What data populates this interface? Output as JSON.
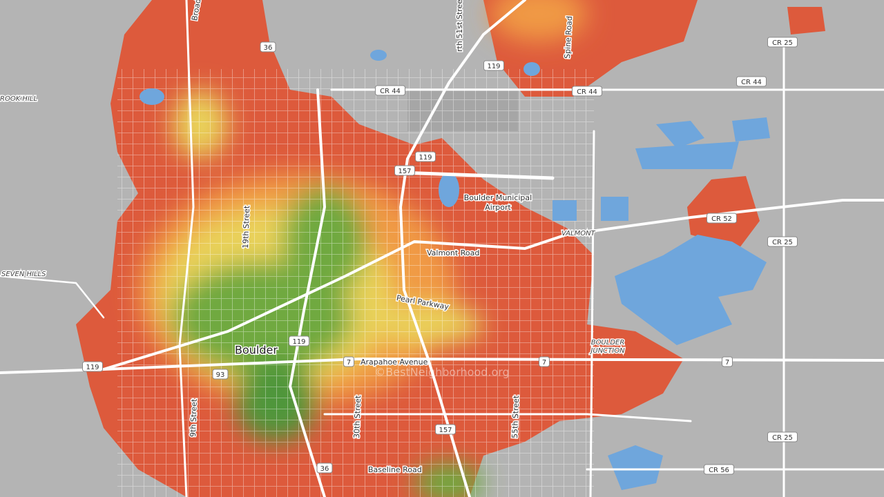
{
  "labels": {
    "broadway": "Broadway",
    "north_51st": "rth 51st Street",
    "spine": "Spine Road",
    "rook_hill": "ROOK HILL",
    "seven_hills": "SEVEN HILLS",
    "airport": [
      "Boulder Municipal",
      "Airport"
    ],
    "nineteenth": "19th Street",
    "valmont_road": "Valmont Road",
    "valmont": "VALMONT",
    "pearl": "Pearl Parkway",
    "boulder": "Boulder",
    "boulder_junction": [
      "BOULDER",
      "JUNCTION"
    ],
    "arapahoe": "Arapahoe Avenue",
    "ninth": "9th Street",
    "thirtieth": "30th Street",
    "fiftyfifth": "55th Street",
    "baseline": "Baseline Road",
    "watermark": "©BestNeighborhood.org"
  },
  "shields": {
    "cr25_a": "CR 25",
    "cr44_a": "CR 44",
    "cr44_b": "CR 44",
    "cr44_c": "CR 44",
    "cr52": "CR 52",
    "cr25_b": "CR 25",
    "cr25_c": "CR 25",
    "cr56": "CR 56",
    "us36_a": "36",
    "us36_b": "36",
    "sh119_a": "119",
    "sh119_b": "119",
    "sh119_c": "119",
    "sh119_d": "119",
    "sh157_a": "157",
    "sh157_b": "157",
    "sh7_a": "7",
    "sh7_b": "7",
    "sh7_c": "7",
    "sh93": "93"
  }
}
